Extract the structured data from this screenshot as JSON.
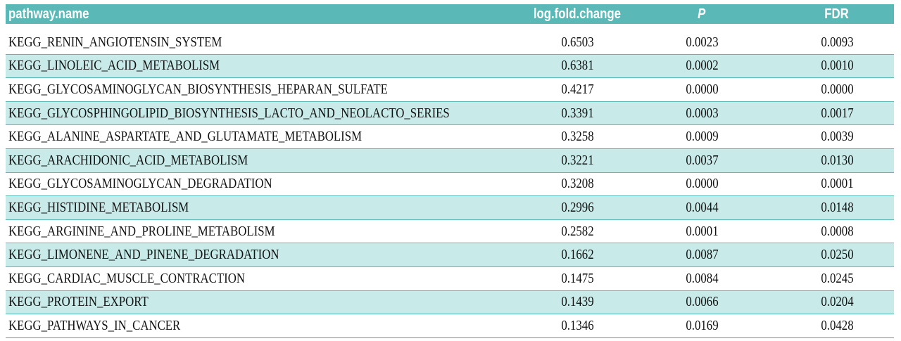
{
  "table": {
    "header": [
      "pathway.name",
      "log.fold.change",
      "P",
      "FDR"
    ],
    "rows": [
      [
        "KEGG_RENIN_ANGIOTENSIN_SYSTEM",
        "0.6503",
        "0.0023",
        "0.0093"
      ],
      [
        "KEGG_LINOLEIC_ACID_METABOLISM",
        "0.6381",
        "0.0002",
        "0.0010"
      ],
      [
        "KEGG_GLYCOSAMINOGLYCAN_BIOSYNTHESIS_HEPARAN_SULFATE",
        "0.4217",
        "0.0000",
        "0.0000"
      ],
      [
        "KEGG_GLYCOSPHINGOLIPID_BIOSYNTHESIS_LACTO_AND_NEOLACTO_SERIES",
        "0.3391",
        "0.0003",
        "0.0017"
      ],
      [
        "KEGG_ALANINE_ASPARTATE_AND_GLUTAMATE_METABOLISM",
        "0.3258",
        "0.0009",
        "0.0039"
      ],
      [
        "KEGG_ARACHIDONIC_ACID_METABOLISM",
        "0.3221",
        "0.0037",
        "0.0130"
      ],
      [
        "KEGG_GLYCOSAMINOGLYCAN_DEGRADATION",
        "0.3208",
        "0.0000",
        "0.0001"
      ],
      [
        "KEGG_HISTIDINE_METABOLISM",
        "0.2996",
        "0.0044",
        "0.0148"
      ],
      [
        "KEGG_ARGININE_AND_PROLINE_METABOLISM",
        "0.2582",
        "0.0001",
        "0.0008"
      ],
      [
        "KEGG_LIMONENE_AND_PINENE_DEGRADATION",
        "0.1662",
        "0.0087",
        "0.0250"
      ],
      [
        "KEGG_CARDIAC_MUSCLE_CONTRACTION",
        "0.1475",
        "0.0084",
        "0.0245"
      ],
      [
        "KEGG_PROTEIN_EXPORT",
        "0.1439",
        "0.0066",
        "0.0204"
      ],
      [
        "KEGG_PATHWAYS_IN_CANCER",
        "0.1346",
        "0.0169",
        "0.0428"
      ]
    ]
  }
}
